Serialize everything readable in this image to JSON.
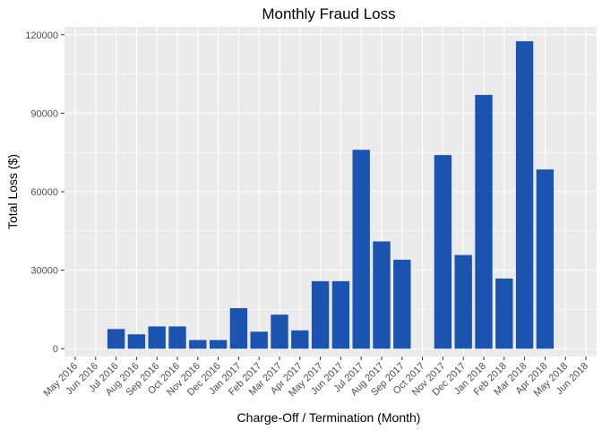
{
  "chart_data": {
    "type": "bar",
    "title": "Monthly Fraud Loss",
    "xlabel": "Charge-Off / Termination (Month)",
    "ylabel": "Total Loss ($)",
    "ylim": [
      -3000,
      123000
    ],
    "yticks": [
      0,
      30000,
      60000,
      90000,
      120000
    ],
    "ytick_labels": [
      "0",
      "30000",
      "60000",
      "90000",
      "120000"
    ],
    "grid": true,
    "bar_color": "#1a53b0",
    "panel_color": "#ebebeb",
    "grid_color": "#ffffff",
    "categories": [
      "May 2016",
      "Jun 2016",
      "Jul 2016",
      "Aug 2016",
      "Sep 2016",
      "Oct 2016",
      "Nov 2016",
      "Dec 2016",
      "Jan 2017",
      "Feb 2017",
      "Mar 2017",
      "Apr 2017",
      "May 2017",
      "Jun 2017",
      "Jul 2017",
      "Aug 2017",
      "Sep 2017",
      "Oct 2017",
      "Nov 2017",
      "Dec 2017",
      "Jan 2018",
      "Feb 2018",
      "Mar 2018",
      "Apr 2018",
      "May 2018",
      "Jun 2018"
    ],
    "values": [
      null,
      null,
      7500,
      5500,
      8500,
      8500,
      3300,
      3300,
      15500,
      6500,
      13000,
      7000,
      25800,
      25800,
      76000,
      41000,
      34000,
      null,
      74000,
      35800,
      97000,
      26800,
      117500,
      68500,
      null,
      null
    ]
  }
}
